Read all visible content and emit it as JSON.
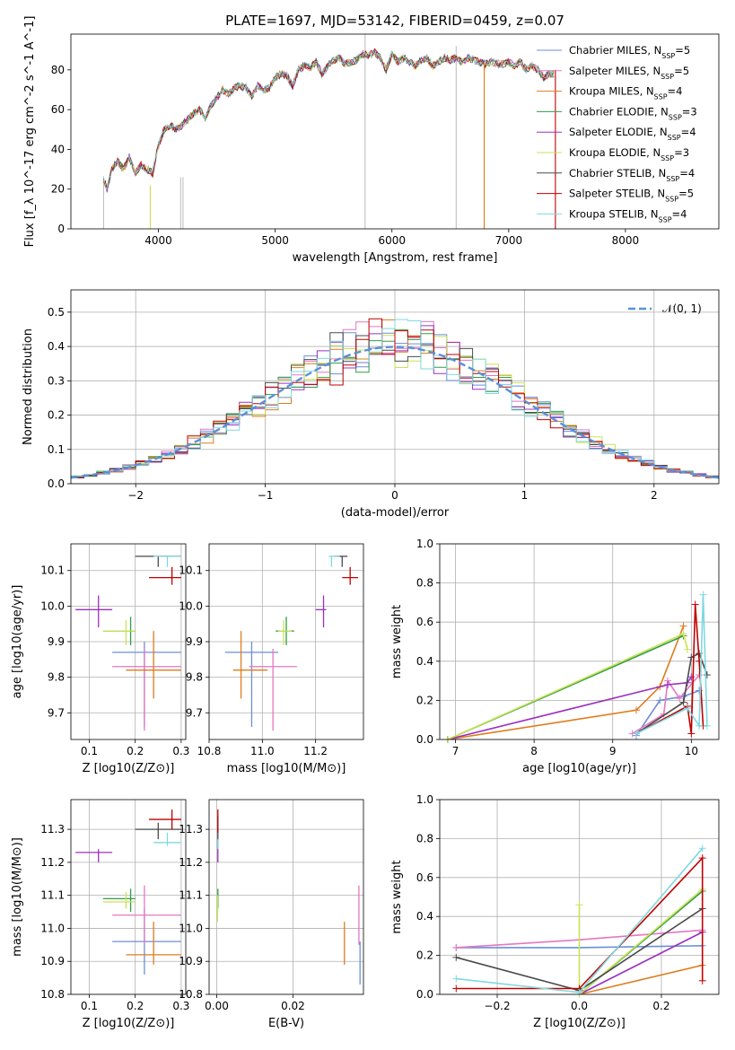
{
  "figure": {
    "title": "PLATE=1697, MJD=53142, FIBERID=0459, z=0.07"
  },
  "chart_data": [
    {
      "id": "spectrum",
      "type": "line",
      "xlabel": "wavelength [Angstrom, rest frame]",
      "ylabel": "Flux [f_λ 10^-17 erg cm^-2 s^-1 A^-1]",
      "xlim": [
        3250,
        8800
      ],
      "ylim": [
        0,
        98
      ],
      "xticks": [
        "4000",
        "5000",
        "6000",
        "7000",
        "8000"
      ],
      "yticks": [
        "0",
        "20",
        "40",
        "60",
        "80"
      ],
      "grid": false,
      "legend_position": "top-right",
      "x": [
        3530,
        3560,
        3600,
        3650,
        3700,
        3750,
        3800,
        3850,
        3900,
        3950,
        4000,
        4050,
        4100,
        4150,
        4200,
        4250,
        4300,
        4350,
        4400,
        4450,
        4500,
        4550,
        4600,
        4650,
        4700,
        4750,
        4800,
        4850,
        4900,
        4950,
        5000,
        5050,
        5100,
        5150,
        5200,
        5250,
        5300,
        5350,
        5400,
        5450,
        5500,
        5550,
        5600,
        5650,
        5700,
        5750,
        5800,
        5850,
        5900,
        5950,
        6000,
        6050,
        6100,
        6150,
        6200,
        6250,
        6300,
        6350,
        6400,
        6450,
        6500,
        6550,
        6600,
        6650,
        6700,
        6750,
        6800,
        6850,
        6900,
        6950,
        7000,
        7050,
        7100,
        7150,
        7200,
        7250,
        7300,
        7350,
        7400
      ],
      "y": [
        25,
        20,
        30,
        34,
        30,
        36,
        28,
        32,
        30,
        28,
        42,
        50,
        52,
        50,
        52,
        55,
        58,
        60,
        56,
        62,
        66,
        70,
        68,
        71,
        72,
        71,
        67,
        72,
        70,
        71,
        76,
        78,
        77,
        72,
        80,
        82,
        81,
        84,
        78,
        82,
        85,
        86,
        83,
        84,
        85,
        88,
        87,
        89,
        86,
        80,
        88,
        84,
        86,
        84,
        82,
        85,
        86,
        82,
        84,
        86,
        85,
        86,
        84,
        86,
        85,
        84,
        83,
        84,
        83,
        83,
        84,
        82,
        84,
        80,
        82,
        80,
        76,
        78,
        78
      ],
      "series": [
        {
          "name": "Chabrier MILES, N_SSP=5",
          "color": "#6b8fd6",
          "mass": 10.96,
          "mass_err": [
            10.86,
            11.06
          ],
          "age": 9.87,
          "age_err": [
            9.66,
            9.9
          ],
          "z": 0.22,
          "z_err": [
            0.15,
            0.3
          ],
          "ebv": 0.0376,
          "ebv_err": [
            10.83,
            10.96
          ],
          "mw_age": [
            [
              9.3,
              0.02
            ],
            [
              9.6,
              0.2
            ],
            [
              9.9,
              0.22
            ],
            [
              10.1,
              0.25
            ]
          ],
          "mw_z": [
            [
              -0.3,
              0.24
            ],
            [
              0.0,
              0.24
            ],
            [
              0.3,
              0.25
            ]
          ]
        },
        {
          "name": "Salpeter MILES, N_SSP=5",
          "color": "#e377c2",
          "mass": 11.04,
          "mass_err": [
            10.95,
            11.13
          ],
          "age": 9.83,
          "age_err": [
            9.65,
            9.88
          ],
          "z": 0.22,
          "z_err": [
            0.15,
            0.3
          ],
          "ebv": 0.0373,
          "ebv_err": [
            10.95,
            11.13
          ],
          "mw_age": [
            [
              9.25,
              0.03
            ],
            [
              9.65,
              0.13
            ],
            [
              9.7,
              0.3
            ],
            [
              9.85,
              0.21
            ],
            [
              10.1,
              0.33
            ]
          ],
          "mw_z": [
            [
              -0.3,
              0.24
            ],
            [
              0.0,
              0.28
            ],
            [
              0.3,
              0.33
            ]
          ]
        },
        {
          "name": "Kroupa MILES, N_SSP=4",
          "color": "#e07b1c",
          "mass": 10.92,
          "mass_err": [
            10.89,
            11.02
          ],
          "age": 9.82,
          "age_err": [
            9.74,
            9.93
          ],
          "z": 0.24,
          "z_err": [
            0.18,
            0.3
          ],
          "ebv": 0.0335,
          "ebv_err": [
            10.89,
            11.02
          ],
          "mw_age": [
            [
              6.9,
              0.0
            ],
            [
              9.3,
              0.15
            ],
            [
              9.6,
              0.27
            ],
            [
              9.9,
              0.58
            ]
          ],
          "mw_z": [
            [
              0.0,
              0.0
            ],
            [
              0.3,
              0.15
            ]
          ]
        },
        {
          "name": "Chabrier ELODIE, N_SSP=3",
          "color": "#2f9e44",
          "mass": 11.09,
          "mass_err": [
            11.05,
            11.12
          ],
          "age": 9.93,
          "age_err": [
            9.89,
            9.97
          ],
          "z": 0.19,
          "z_err": [
            0.13,
            0.2
          ],
          "ebv": 0.0003,
          "ebv_err": [
            11.06,
            11.12
          ],
          "mw_age": [
            [
              6.9,
              0.0
            ],
            [
              9.9,
              0.53
            ]
          ],
          "mw_z": [
            [
              0.0,
              0.0
            ],
            [
              0.3,
              0.53
            ]
          ]
        },
        {
          "name": "Salpeter ELODIE, N_SSP=4",
          "color": "#9b30c0",
          "mass": 11.23,
          "mass_err": [
            11.2,
            11.24
          ],
          "age": 9.99,
          "age_err": [
            9.94,
            10.03
          ],
          "z": 0.12,
          "z_err": [
            0.07,
            0.15
          ],
          "ebv": 0.0003,
          "ebv_err": [
            11.2,
            11.26
          ],
          "mw_age": [
            [
              6.9,
              0.0
            ],
            [
              9.7,
              0.28
            ],
            [
              9.95,
              0.29
            ],
            [
              10.0,
              0.32
            ]
          ],
          "mw_z": [
            [
              0.0,
              0.0
            ],
            [
              0.3,
              0.32
            ]
          ]
        },
        {
          "name": "Kroupa ELODIE, N_SSP=3",
          "color": "#c9e356",
          "mass": 11.08,
          "mass_err": [
            11.06,
            11.11
          ],
          "age": 9.93,
          "age_err": [
            9.89,
            9.96
          ],
          "z": 0.18,
          "z_err": [
            0.13,
            0.2
          ],
          "ebv": 0.0002,
          "ebv_err": [
            11.02,
            11.1
          ],
          "mw_age": [
            [
              6.9,
              0.0
            ],
            [
              9.9,
              0.54
            ],
            [
              9.95,
              0.46
            ]
          ],
          "mw_z": [
            [
              0.0,
              0.46
            ],
            [
              0.0,
              0.0
            ],
            [
              0.3,
              0.54
            ]
          ]
        },
        {
          "name": "Chabrier STELIB, N_SSP=4",
          "color": "#4a4a4a",
          "mass": 11.3,
          "mass_err": [
            11.27,
            11.32
          ],
          "age": 10.14,
          "age_err": [
            10.11,
            10.14
          ],
          "z": 0.25,
          "z_err": [
            0.2,
            0.3
          ],
          "ebv": 0.0003,
          "ebv_err": [
            11.26,
            11.34
          ],
          "mw_age": [
            [
              9.3,
              0.03
            ],
            [
              9.9,
              0.19
            ],
            [
              10.0,
              0.42
            ],
            [
              10.1,
              0.44
            ],
            [
              10.2,
              0.33
            ]
          ],
          "mw_z": [
            [
              -0.3,
              0.19
            ],
            [
              0.0,
              0.02
            ],
            [
              0.3,
              0.44
            ]
          ]
        },
        {
          "name": "Salpeter STELIB, N_SSP=5",
          "color": "#c00000",
          "mass": 11.33,
          "mass_err": [
            11.3,
            11.36
          ],
          "age": 10.08,
          "age_err": [
            10.06,
            10.11
          ],
          "z": 0.28,
          "z_err": [
            0.23,
            0.3
          ],
          "ebv": 0.0003,
          "ebv_err": [
            11.29,
            11.36
          ],
          "mw_age": [
            [
              9.3,
              0.03
            ],
            [
              9.95,
              0.17
            ],
            [
              10.0,
              0.03
            ],
            [
              10.05,
              0.69
            ],
            [
              10.1,
              0.4
            ],
            [
              10.15,
              0.07
            ]
          ],
          "mw_z": [
            [
              -0.3,
              0.03
            ],
            [
              0.0,
              0.03
            ],
            [
              0.3,
              0.7
            ],
            [
              0.3,
              0.07
            ]
          ]
        },
        {
          "name": "Kroupa STELIB, N_SSP=4",
          "color": "#7fd8e0",
          "mass": 11.26,
          "mass_err": [
            11.25,
            11.29
          ],
          "age": 10.14,
          "age_err": [
            10.11,
            10.14
          ],
          "z": 0.27,
          "z_err": [
            0.24,
            0.3
          ],
          "ebv": 0.0003,
          "ebv_err": [
            11.24,
            11.27
          ],
          "mw_age": [
            [
              9.3,
              0.03
            ],
            [
              9.95,
              0.16
            ],
            [
              10.1,
              0.07
            ],
            [
              10.15,
              0.74
            ],
            [
              10.2,
              0.07
            ]
          ],
          "mw_z": [
            [
              -0.3,
              0.08
            ],
            [
              0.0,
              0.01
            ],
            [
              0.3,
              0.75
            ]
          ]
        }
      ]
    },
    {
      "id": "residuals",
      "type": "histogram",
      "xlabel": "(data-model)/error",
      "ylabel": "Normed distribution",
      "xlim": [
        -2.5,
        2.5
      ],
      "ylim": [
        0,
        0.565
      ],
      "xticks": [
        "−2",
        "−1",
        "0",
        "1",
        "2"
      ],
      "yticks": [
        "0.0",
        "0.1",
        "0.2",
        "0.3",
        "0.4",
        "0.5"
      ],
      "grid": true,
      "legend_position": "top-right",
      "legend": [
        "𝒩(0, 1)"
      ],
      "reference_curve": "normal(0,1)"
    },
    {
      "id": "age-vs-z",
      "type": "scatter",
      "xlabel": "Z [log10(Z/Z⊙)]",
      "ylabel": "age [log10(age/yr)]",
      "xlim": [
        0.06,
        0.31
      ],
      "ylim": [
        9.625,
        10.175
      ],
      "xticks": [
        "0.1",
        "0.2",
        "0.3"
      ],
      "yticks": [
        "9.7",
        "9.8",
        "9.9",
        "10.0",
        "10.1"
      ],
      "grid": true
    },
    {
      "id": "age-vs-mass",
      "type": "scatter",
      "xlabel": "mass [log10(M/M⊙)]",
      "ylabel": "",
      "xlim": [
        10.8,
        11.38
      ],
      "ylim": [
        9.625,
        10.175
      ],
      "xticks": [
        "10.8",
        "11.0",
        "11.2"
      ],
      "yticks": [
        "9.7",
        "9.8",
        "9.9",
        "10.0",
        "10.1"
      ],
      "grid": true
    },
    {
      "id": "mass-weight-vs-age",
      "type": "line",
      "xlabel": "age [log10(age/yr)]",
      "ylabel": "mass weight",
      "xlim": [
        6.8,
        10.35
      ],
      "ylim": [
        0,
        1.0
      ],
      "xticks": [
        "7",
        "8",
        "9",
        "10"
      ],
      "yticks": [
        "0.0",
        "0.2",
        "0.4",
        "0.6",
        "0.8",
        "1.0"
      ],
      "grid": true
    },
    {
      "id": "mass-vs-z",
      "type": "scatter",
      "xlabel": "Z [log10(Z/Z⊙)]",
      "ylabel": "mass [log10(M/M⊙)]",
      "xlim": [
        0.06,
        0.31
      ],
      "ylim": [
        10.8,
        11.39
      ],
      "xticks": [
        "0.1",
        "0.2",
        "0.3"
      ],
      "yticks": [
        "10.8",
        "10.9",
        "11.0",
        "11.1",
        "11.2",
        "11.3"
      ],
      "grid": true
    },
    {
      "id": "mass-vs-ebv",
      "type": "scatter",
      "xlabel": "E(B-V)",
      "ylabel": "",
      "xlim": [
        -0.002,
        0.0385
      ],
      "ylim": [
        10.8,
        11.39
      ],
      "xticks": [
        "0.00",
        "0.02"
      ],
      "yticks": [
        "10.8",
        "10.9",
        "11.0",
        "11.1",
        "11.2",
        "11.3"
      ],
      "grid": true
    },
    {
      "id": "mass-weight-vs-z",
      "type": "line",
      "xlabel": "Z [log10(Z/Z⊙)]",
      "ylabel": "mass weight",
      "xlim": [
        -0.34,
        0.34
      ],
      "ylim": [
        0,
        1.0
      ],
      "xticks": [
        "−0.2",
        "0.0",
        "0.2"
      ],
      "yticks": [
        "0.0",
        "0.2",
        "0.4",
        "0.6",
        "0.8",
        "1.0"
      ],
      "grid": true
    }
  ]
}
